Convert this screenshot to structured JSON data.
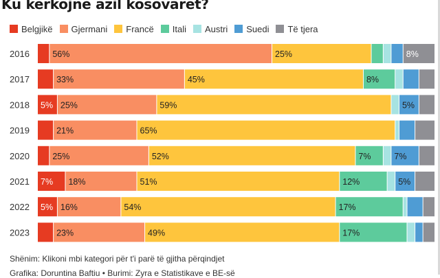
{
  "chart_data": {
    "type": "bar",
    "orientation": "horizontal",
    "stacked": true,
    "normalized": true,
    "title": "Ku kërkojnë azil kosovarët?",
    "categories": [
      "2016",
      "2017",
      "2018",
      "2019",
      "2020",
      "2021",
      "2022",
      "2023"
    ],
    "series": [
      {
        "name": "Belgjikë",
        "color": "#e63b22",
        "values": [
          3,
          4,
          5,
          4,
          3,
          7,
          5,
          4
        ]
      },
      {
        "name": "Gjermani",
        "color": "#f98e62",
        "values": [
          56,
          33,
          25,
          21,
          25,
          18,
          16,
          23
        ]
      },
      {
        "name": "Francë",
        "color": "#fec53d",
        "values": [
          25,
          45,
          59,
          65,
          52,
          51,
          54,
          49
        ]
      },
      {
        "name": "Itali",
        "color": "#5dcb9c",
        "values": [
          3,
          8,
          0,
          0,
          7,
          12,
          17,
          17
        ]
      },
      {
        "name": "Austri",
        "color": "#a7e3e2",
        "values": [
          2,
          2,
          2,
          1,
          2,
          2,
          1,
          2
        ]
      },
      {
        "name": "Suedi",
        "color": "#4f9cd4",
        "values": [
          3,
          4,
          5,
          4,
          7,
          5,
          4,
          2
        ]
      },
      {
        "name": "Të tjera",
        "color": "#8f8f94",
        "values": [
          8,
          4,
          4,
          5,
          4,
          5,
          3,
          3
        ]
      }
    ],
    "data_labels": [
      [
        "",
        "56%",
        "25%",
        "",
        "",
        "",
        "8%"
      ],
      [
        "",
        "33%",
        "45%",
        "8%",
        "",
        "",
        ""
      ],
      [
        "5%",
        "25%",
        "59%",
        "",
        "",
        "5%",
        ""
      ],
      [
        "",
        "21%",
        "65%",
        "",
        "",
        "",
        ""
      ],
      [
        "",
        "25%",
        "52%",
        "7%",
        "",
        "7%",
        ""
      ],
      [
        "7%",
        "18%",
        "51%",
        "12%",
        "",
        "5%",
        ""
      ],
      [
        "5%",
        "16%",
        "54%",
        "17%",
        "",
        "",
        ""
      ],
      [
        "",
        "23%",
        "49%",
        "17%",
        "",
        "",
        ""
      ]
    ],
    "label_colors": [
      "#ffffff",
      "#222222",
      "#222222",
      "#222222",
      "#222222",
      "#222222",
      "#ffffff"
    ],
    "xlim": [
      0,
      100
    ],
    "legend": "top-left"
  },
  "footer": {
    "note": "Shënim: Klikoni mbi kategori për t'i parë të gjitha përqindjet",
    "credit": "Grafika: Doruntina Baftiu • Burimi: Zyra e Statistikave e BE-së"
  }
}
